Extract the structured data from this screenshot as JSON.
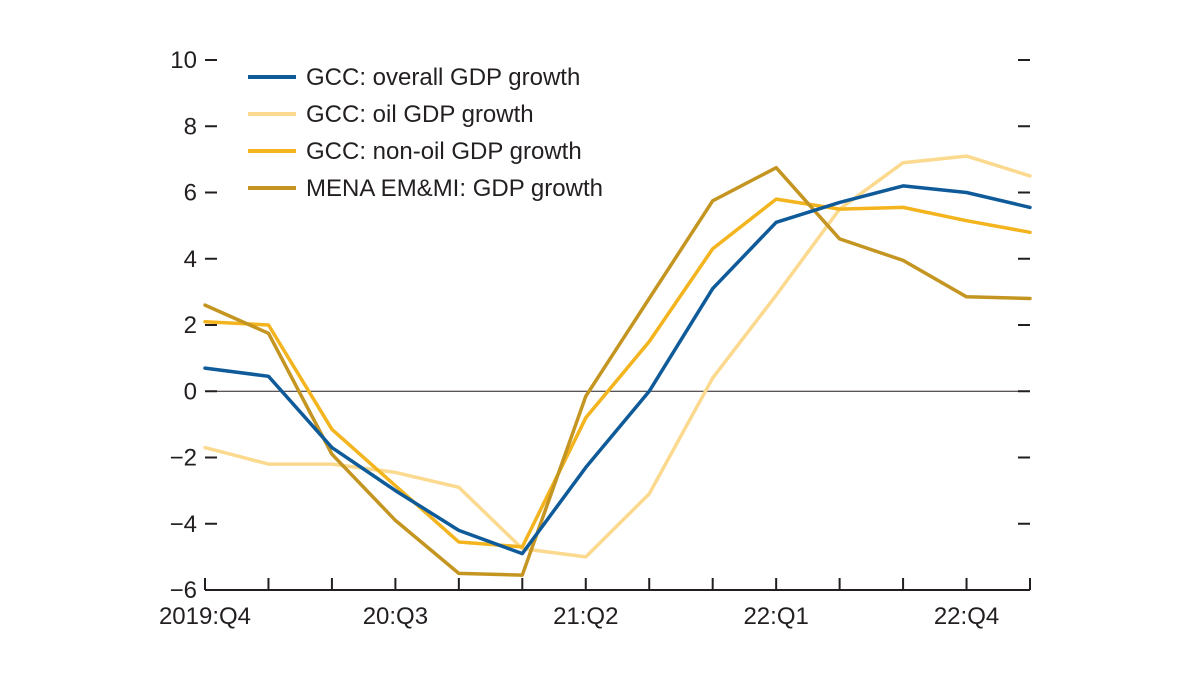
{
  "chart_data": {
    "type": "line",
    "title": "",
    "xlabel": "",
    "ylabel": "",
    "ylim": [
      -6,
      10
    ],
    "yticks": [
      -6,
      -4,
      -2,
      0,
      2,
      4,
      6,
      8,
      10
    ],
    "ytick_labels": [
      "−6",
      "−4",
      "−2",
      "0",
      "2",
      "4",
      "6",
      "8",
      "10"
    ],
    "grid": false,
    "zero_line": true,
    "legend_position": "top-left",
    "x": [
      "2019:Q4",
      "20:Q1",
      "20:Q2",
      "20:Q3",
      "20:Q4",
      "21:Q1",
      "21:Q2",
      "21:Q3",
      "21:Q4",
      "22:Q1",
      "22:Q2",
      "22:Q3",
      "22:Q4",
      "23:Q1"
    ],
    "x_tick_labels": [
      {
        "index": 0,
        "label": "2019:Q4"
      },
      {
        "index": 3,
        "label": "20:Q3"
      },
      {
        "index": 6,
        "label": "21:Q2"
      },
      {
        "index": 9,
        "label": "22:Q1"
      },
      {
        "index": 12,
        "label": "22:Q4"
      }
    ],
    "series": [
      {
        "name": "GCC: overall GDP growth",
        "color": "#0f5b9a",
        "values": [
          0.7,
          0.45,
          -1.7,
          -3.0,
          -4.2,
          -4.9,
          -2.3,
          0.0,
          3.1,
          5.1,
          5.7,
          6.2,
          6.0,
          5.55
        ]
      },
      {
        "name": "GCC: oil GDP growth",
        "color": "#fbd98e",
        "values": [
          -1.7,
          -2.2,
          -2.2,
          -2.45,
          -2.9,
          -4.75,
          -5.0,
          -3.1,
          0.4,
          2.9,
          5.5,
          6.9,
          7.1,
          6.5
        ]
      },
      {
        "name": "GCC: non-oil GDP growth",
        "color": "#f3b41e",
        "values": [
          2.1,
          2.0,
          -1.15,
          -2.85,
          -4.55,
          -4.7,
          -0.8,
          1.5,
          4.3,
          5.8,
          5.5,
          5.55,
          5.15,
          4.8
        ]
      },
      {
        "name": "MENA EM&MI: GDP growth",
        "color": "#c49521",
        "values": [
          2.6,
          1.75,
          -1.9,
          -3.9,
          -5.5,
          -5.55,
          -0.15,
          2.8,
          5.75,
          6.75,
          4.6,
          3.95,
          2.85,
          2.8
        ]
      }
    ]
  }
}
